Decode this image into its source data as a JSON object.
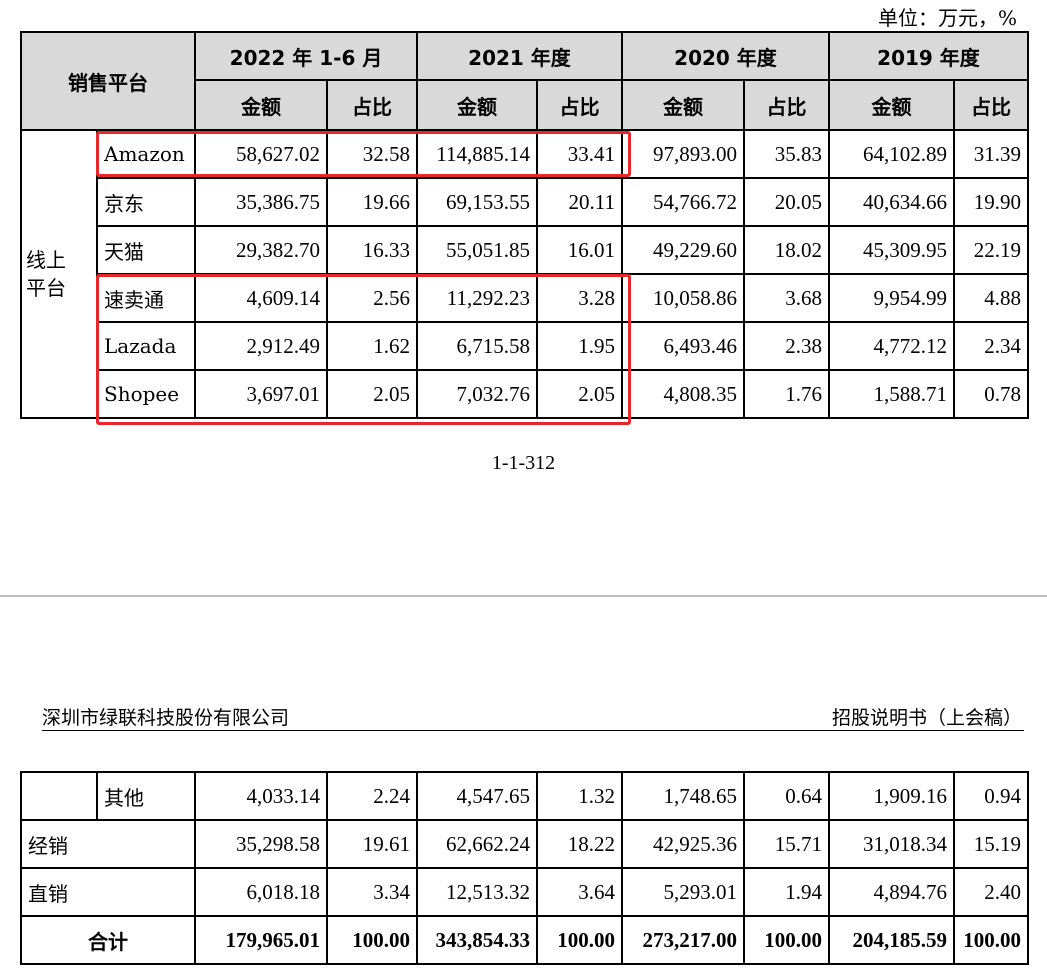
{
  "unit_note": "单位：万元，%",
  "table_header": {
    "platform": "销售平台",
    "periods": [
      "2022 年 1-6 月",
      "2021 年度",
      "2020 年度",
      "2019 年度"
    ],
    "amount": "金额",
    "ratio": "占比"
  },
  "online_group_label": "线上\n平台",
  "rows_page1": [
    {
      "name": "Amazon",
      "values": [
        "58,627.02",
        "32.58",
        "114,885.14",
        "33.41",
        "97,893.00",
        "35.83",
        "64,102.89",
        "31.39"
      ]
    },
    {
      "name": "京东",
      "values": [
        "35,386.75",
        "19.66",
        "69,153.55",
        "20.11",
        "54,766.72",
        "20.05",
        "40,634.66",
        "19.90"
      ]
    },
    {
      "name": "天猫",
      "values": [
        "29,382.70",
        "16.33",
        "55,051.85",
        "16.01",
        "49,229.60",
        "18.02",
        "45,309.95",
        "22.19"
      ]
    },
    {
      "name": "速卖通",
      "values": [
        "4,609.14",
        "2.56",
        "11,292.23",
        "3.28",
        "10,058.86",
        "3.68",
        "9,954.99",
        "4.88"
      ]
    },
    {
      "name": "Lazada",
      "values": [
        "2,912.49",
        "1.62",
        "6,715.58",
        "1.95",
        "6,493.46",
        "2.38",
        "4,772.12",
        "2.34"
      ]
    },
    {
      "name": "Shopee",
      "values": [
        "3,697.01",
        "2.05",
        "7,032.76",
        "2.05",
        "4,808.35",
        "1.76",
        "1,588.71",
        "0.78"
      ]
    }
  ],
  "page_number": "1-1-312",
  "company_name": "深圳市绿联科技股份有限公司",
  "doc_title": "招股说明书（上会稿）",
  "rows_page2": [
    {
      "name": "其他",
      "values": [
        "4,033.14",
        "2.24",
        "4,547.65",
        "1.32",
        "1,748.65",
        "0.64",
        "1,909.16",
        "0.94"
      ]
    },
    {
      "name": "经销",
      "values": [
        "35,298.58",
        "19.61",
        "62,662.24",
        "18.22",
        "42,925.36",
        "15.71",
        "31,018.34",
        "15.19"
      ]
    },
    {
      "name": "直销",
      "values": [
        "6,018.18",
        "3.34",
        "12,513.32",
        "3.64",
        "5,293.01",
        "1.94",
        "4,894.76",
        "2.40"
      ]
    }
  ],
  "total_row": {
    "name": "合计",
    "values": [
      "179,965.01",
      "100.00",
      "343,854.33",
      "100.00",
      "273,217.00",
      "100.00",
      "204,185.59",
      "100.00"
    ]
  },
  "highlight_color": "#e8272b"
}
